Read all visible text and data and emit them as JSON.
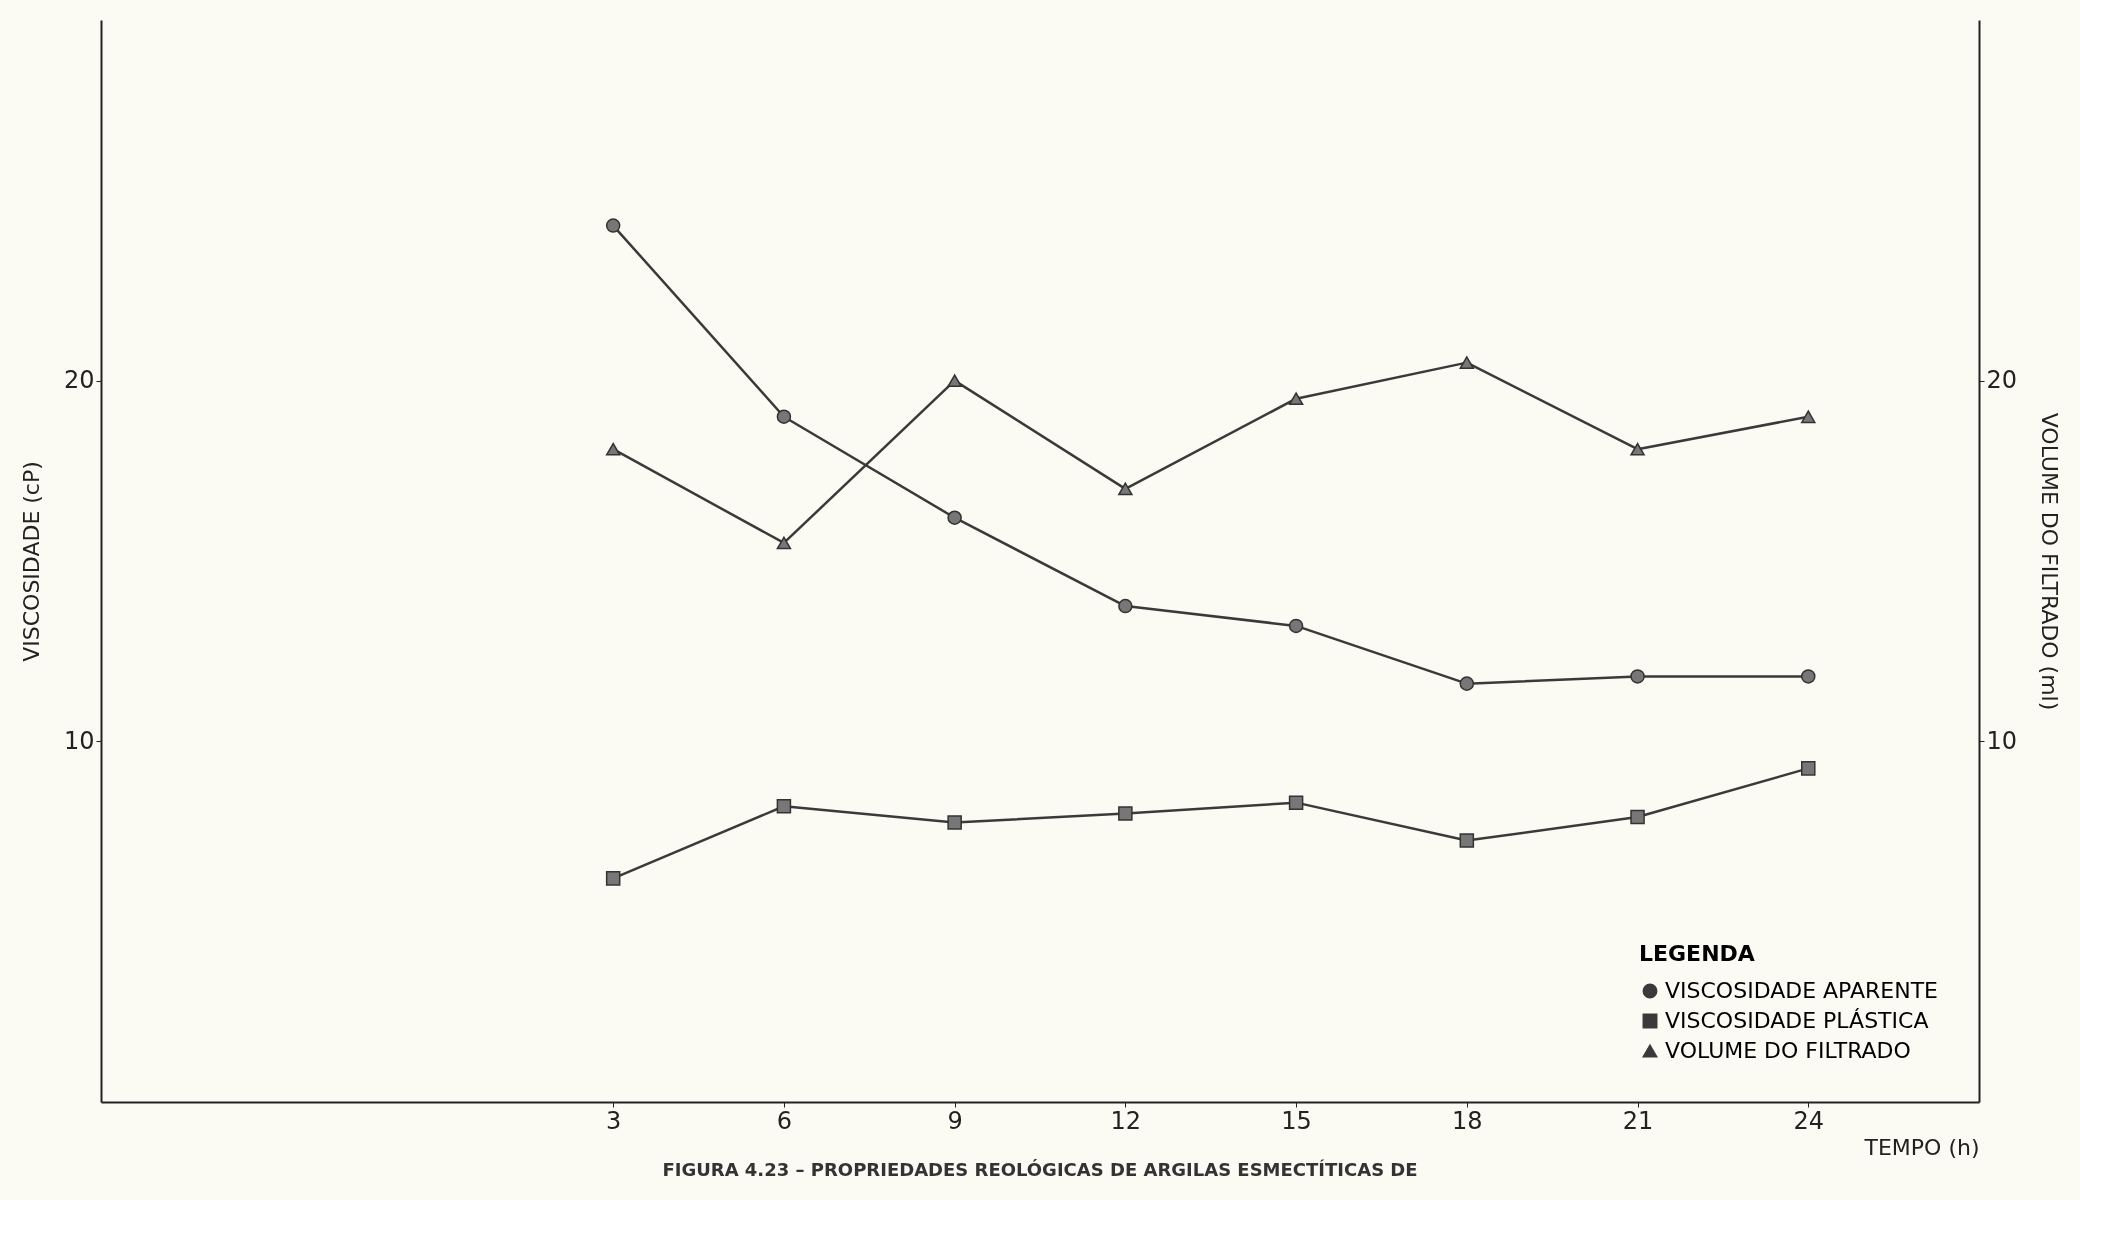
{
  "chart_data": {
    "type": "line",
    "xlabel": "TEMPO (h)",
    "ylabel": "VISCOSIDADE (cP)",
    "y2label": "VOLUME DO FILTRADO (ml)",
    "legend_title": "LEGENDA",
    "x": [
      3,
      6,
      9,
      12,
      15,
      18,
      21,
      24
    ],
    "series": [
      {
        "name": "VISCOSIDADE APARENTE",
        "color": "#3a3a3a",
        "marker": "circle",
        "values": [
          24.3,
          19.0,
          16.2,
          13.75,
          13.2,
          11.6,
          11.8,
          11.8
        ]
      },
      {
        "name": "VISCOSIDADE PLÁSTICA",
        "color": "#3a3a3a",
        "marker": "square",
        "values": [
          6.2,
          8.2,
          7.75,
          8.0,
          8.3,
          7.25,
          7.9,
          9.25
        ]
      },
      {
        "name": "VOLUME DO FILTRADO",
        "color": "#3a3a3a",
        "marker": "triangle",
        "axis": "y2",
        "values": [
          18.1,
          15.5,
          20.0,
          17.0,
          19.5,
          20.5,
          18.1,
          19.0
        ]
      }
    ],
    "xlim": [
      -6,
      27
    ],
    "xticks": [
      3,
      6,
      9,
      12,
      15,
      18,
      21,
      24
    ],
    "ylim": [
      0,
      30
    ],
    "yticks": [
      10,
      20
    ],
    "y2lim": [
      0,
      30
    ],
    "y2ticks": [
      10,
      20
    ],
    "grid": false,
    "legend": "bottom right",
    "line_style": "solid",
    "annotations": [
      "FIGURA 4.23 – PROPRIEDADES REOLÓGICAS DE ARGILAS ESMECTÍTICAS DE"
    ]
  }
}
